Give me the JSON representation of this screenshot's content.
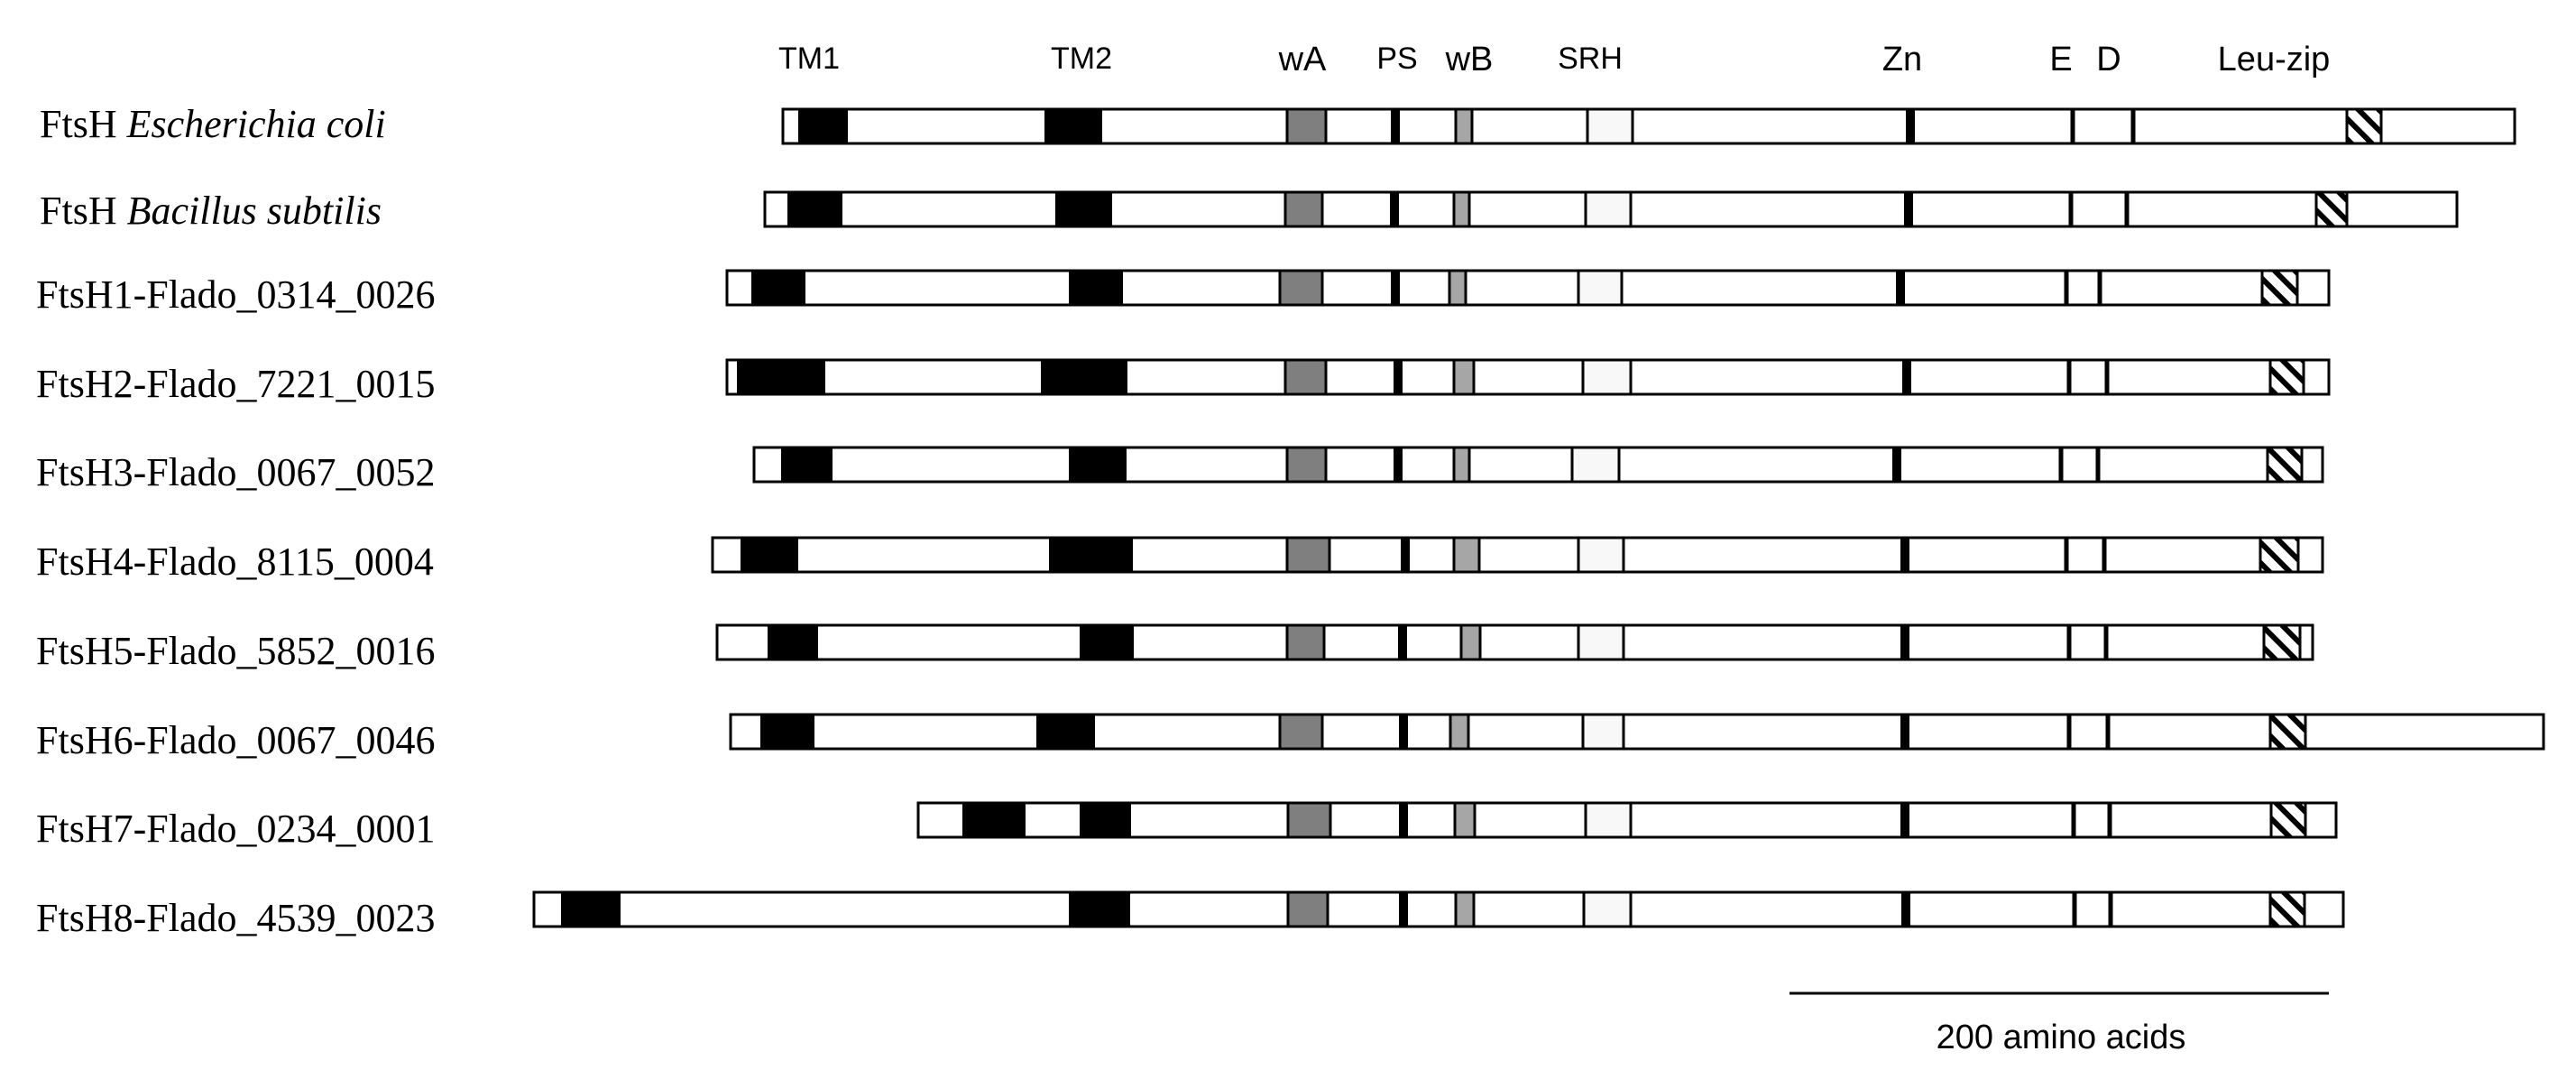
{
  "domain_headers": [
    {
      "id": "tm1",
      "label": "TM1"
    },
    {
      "id": "tm2",
      "label": "TM2"
    },
    {
      "id": "wa",
      "label": "wA"
    },
    {
      "id": "ps",
      "label": "PS"
    },
    {
      "id": "wb",
      "label": "wB"
    },
    {
      "id": "srh",
      "label": "SRH"
    },
    {
      "id": "zn",
      "label": "Zn"
    },
    {
      "id": "e",
      "label": "E"
    },
    {
      "id": "d",
      "label": "D"
    },
    {
      "id": "leuzip",
      "label": "Leu-zip"
    }
  ],
  "proteins": [
    {
      "name": "FtsH",
      "organism": "Escherichia coli"
    },
    {
      "name": "FtsH",
      "organism": "Bacillus subtilis"
    },
    {
      "name": "FtsH1-Flado_0314_0026",
      "organism": ""
    },
    {
      "name": "FtsH2-Flado_7221_0015",
      "organism": ""
    },
    {
      "name": "FtsH3-Flado_0067_0052",
      "organism": ""
    },
    {
      "name": "FtsH4-Flado_8115_0004",
      "organism": ""
    },
    {
      "name": "FtsH5-Flado_5852_0016",
      "organism": ""
    },
    {
      "name": "FtsH6-Flado_0067_0046",
      "organism": ""
    },
    {
      "name": "FtsH7-Flado_0234_0001",
      "organism": ""
    },
    {
      "name": "FtsH8-Flado_4539_0023",
      "organism": ""
    }
  ],
  "scale_bar": {
    "label": "200 amino acids"
  },
  "colors": {
    "tm": "#000000",
    "walker_a": "#7f7f7f",
    "walker_b": "#a6a6a6",
    "srh": "#f8f8f8",
    "outline": "#000000"
  }
}
